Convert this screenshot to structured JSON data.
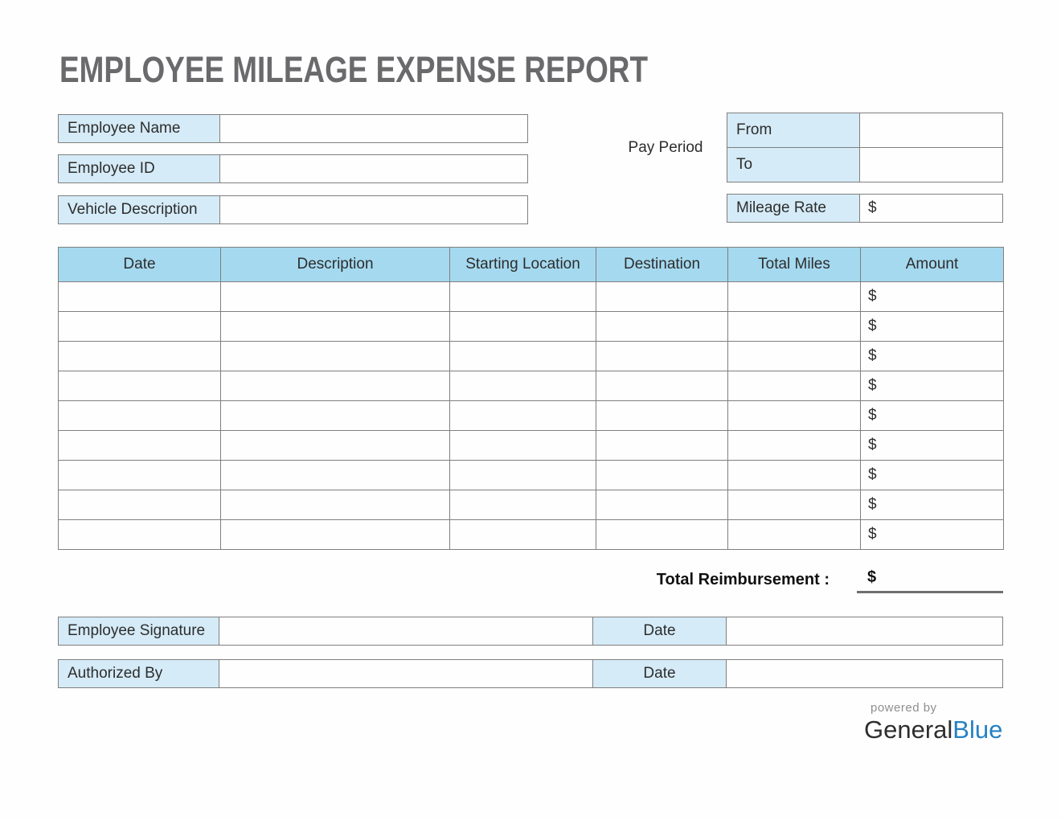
{
  "title": "EMPLOYEE MILEAGE EXPENSE REPORT",
  "fields": {
    "employee_name": {
      "label": "Employee Name",
      "value": ""
    },
    "employee_id": {
      "label": "Employee ID",
      "value": ""
    },
    "vehicle_description": {
      "label": "Vehicle Description",
      "value": ""
    }
  },
  "pay_period": {
    "label": "Pay Period",
    "from_label": "From",
    "from_value": "",
    "to_label": "To",
    "to_value": ""
  },
  "mileage_rate": {
    "label": "Mileage Rate",
    "value": "$"
  },
  "expense_table": {
    "columns": [
      "Date",
      "Description",
      "Starting Location",
      "Destination",
      "Total Miles",
      "Amount"
    ],
    "column_keys": [
      "date",
      "description",
      "starting_location",
      "destination",
      "total_miles",
      "amount"
    ],
    "rows": [
      {
        "date": "",
        "description": "",
        "starting_location": "",
        "destination": "",
        "total_miles": "",
        "amount": "$"
      },
      {
        "date": "",
        "description": "",
        "starting_location": "",
        "destination": "",
        "total_miles": "",
        "amount": "$"
      },
      {
        "date": "",
        "description": "",
        "starting_location": "",
        "destination": "",
        "total_miles": "",
        "amount": "$"
      },
      {
        "date": "",
        "description": "",
        "starting_location": "",
        "destination": "",
        "total_miles": "",
        "amount": "$"
      },
      {
        "date": "",
        "description": "",
        "starting_location": "",
        "destination": "",
        "total_miles": "",
        "amount": "$"
      },
      {
        "date": "",
        "description": "",
        "starting_location": "",
        "destination": "",
        "total_miles": "",
        "amount": "$"
      },
      {
        "date": "",
        "description": "",
        "starting_location": "",
        "destination": "",
        "total_miles": "",
        "amount": "$"
      },
      {
        "date": "",
        "description": "",
        "starting_location": "",
        "destination": "",
        "total_miles": "",
        "amount": "$"
      },
      {
        "date": "",
        "description": "",
        "starting_location": "",
        "destination": "",
        "total_miles": "",
        "amount": "$"
      }
    ]
  },
  "total": {
    "label": "Total Reimbursement :",
    "currency": "$",
    "value": ""
  },
  "signatures": [
    {
      "label": "Employee Signature",
      "value": "",
      "date_label": "Date",
      "date_value": ""
    },
    {
      "label": "Authorized By",
      "value": "",
      "date_label": "Date",
      "date_value": ""
    }
  ],
  "footer": {
    "powered_by": "powered by",
    "brand_first": "General",
    "brand_second": "Blue"
  },
  "colors": {
    "table_header_blue": "#a5d9ef",
    "label_cell_blue": "#d5ebf7",
    "border_gray": "#7f7f7f",
    "title_gray": "#6a6a6d",
    "brand_blue": "#2581c4"
  }
}
